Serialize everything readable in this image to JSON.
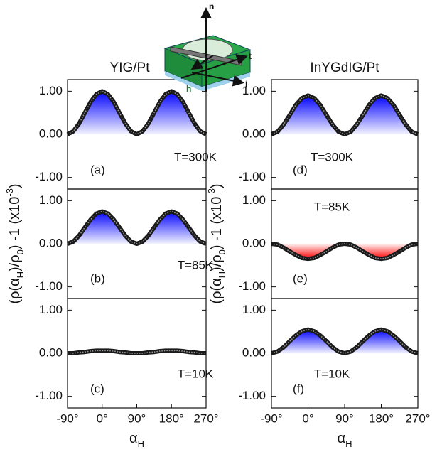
{
  "chart_data": [
    {
      "type": "area-line",
      "title": "YIG/Pt",
      "annotations": [
        "T=300K",
        "(a)"
      ],
      "fill_color": "#0000ff",
      "x": [
        -90,
        -75,
        -60,
        -45,
        -30,
        -15,
        0,
        15,
        30,
        45,
        60,
        75,
        90,
        105,
        120,
        135,
        150,
        165,
        180,
        195,
        210,
        225,
        240,
        255,
        270
      ],
      "values": [
        0,
        0.07,
        0.25,
        0.5,
        0.75,
        0.93,
        1,
        0.93,
        0.75,
        0.5,
        0.25,
        0.07,
        0,
        0.07,
        0.25,
        0.5,
        0.75,
        0.93,
        1,
        0.93,
        0.75,
        0.5,
        0.25,
        0.07,
        0
      ],
      "xlim": [
        -90,
        270
      ],
      "ylim": [
        -1.27,
        1.27
      ],
      "yticks": [
        {
          "value": 1,
          "label": "1.00"
        },
        {
          "value": 0,
          "label": "0.00"
        },
        {
          "value": -1,
          "label": "-1.00"
        }
      ]
    },
    {
      "type": "area-line",
      "annotations": [
        "T=85K",
        "(b)"
      ],
      "fill_color": "#0000ff",
      "ylabel": [
        {
          "text": "(ρ(α"
        },
        {
          "text": "H",
          "sub": true
        },
        {
          "text": ")/ρ"
        },
        {
          "text": "0",
          "sub": true
        },
        {
          "text": ") -1 (x10"
        },
        {
          "text": "-3",
          "sup": true
        },
        {
          "text": ")"
        }
      ],
      "x": [
        -90,
        -75,
        -60,
        -45,
        -30,
        -15,
        0,
        15,
        30,
        45,
        60,
        75,
        90,
        105,
        120,
        135,
        150,
        165,
        180,
        195,
        210,
        225,
        240,
        255,
        270
      ],
      "values": [
        0,
        0.05,
        0.19,
        0.38,
        0.56,
        0.7,
        0.75,
        0.7,
        0.56,
        0.38,
        0.19,
        0.05,
        0,
        0.05,
        0.19,
        0.38,
        0.56,
        0.7,
        0.75,
        0.7,
        0.56,
        0.38,
        0.19,
        0.05,
        0
      ],
      "xlim": [
        -90,
        270
      ],
      "ylim": [
        -1.27,
        1.27
      ],
      "yticks": [
        {
          "value": 1,
          "label": "1.00"
        },
        {
          "value": 0,
          "label": "0.00"
        },
        {
          "value": -1,
          "label": "-1.00"
        }
      ]
    },
    {
      "type": "area-line",
      "annotations": [
        "T=10K",
        "(c)"
      ],
      "fill_color": "#0000ff",
      "xlabel": [
        {
          "text": "α"
        },
        {
          "text": "H",
          "sub": true
        }
      ],
      "x": [
        -90,
        -75,
        -60,
        -45,
        -30,
        -15,
        0,
        15,
        30,
        45,
        60,
        75,
        90,
        105,
        120,
        135,
        150,
        165,
        180,
        195,
        210,
        225,
        240,
        255,
        270
      ],
      "values": [
        0,
        0,
        0.02,
        0.03,
        0.05,
        0.06,
        0.06,
        0.06,
        0.05,
        0.03,
        0.02,
        0,
        0,
        0,
        0.02,
        0.03,
        0.05,
        0.06,
        0.06,
        0.06,
        0.05,
        0.03,
        0.02,
        0,
        0
      ],
      "xlim": [
        -90,
        270
      ],
      "ylim": [
        -1.27,
        1.27
      ],
      "xticks": [
        {
          "value": -90,
          "label": "-90°"
        },
        {
          "value": 0,
          "label": "0°"
        },
        {
          "value": 90,
          "label": "90°"
        },
        {
          "value": 180,
          "label": "180°"
        },
        {
          "value": 270,
          "label": "270°"
        }
      ],
      "yticks": [
        {
          "value": 1,
          "label": "1.00"
        },
        {
          "value": 0,
          "label": "0.00"
        },
        {
          "value": -1,
          "label": "-1.00"
        }
      ]
    },
    {
      "type": "area-line",
      "title": "InYGdIG/Pt",
      "annotations": [
        "T=300K",
        "(d)"
      ],
      "fill_color": "#0000ff",
      "x": [
        -90,
        -75,
        -60,
        -45,
        -30,
        -15,
        0,
        15,
        30,
        45,
        60,
        75,
        90,
        105,
        120,
        135,
        150,
        165,
        180,
        195,
        210,
        225,
        240,
        255,
        270
      ],
      "values": [
        0,
        0.06,
        0.23,
        0.45,
        0.68,
        0.84,
        0.9,
        0.84,
        0.68,
        0.45,
        0.23,
        0.06,
        0,
        0.06,
        0.23,
        0.45,
        0.68,
        0.84,
        0.9,
        0.84,
        0.68,
        0.45,
        0.23,
        0.06,
        0
      ],
      "xlim": [
        -90,
        270
      ],
      "ylim": [
        -1.27,
        1.27
      ],
      "yticks": [
        {
          "value": 1,
          "label": "1.00"
        },
        {
          "value": 0,
          "label": "0.00"
        },
        {
          "value": -1,
          "label": "-1.00"
        }
      ]
    },
    {
      "type": "area-line",
      "annotations": [
        "T=85K",
        "(e)"
      ],
      "fill_color": "#ff0000",
      "ylabel": [
        {
          "text": "(ρ(α"
        },
        {
          "text": "H",
          "sub": true
        },
        {
          "text": ")/ρ"
        },
        {
          "text": "0",
          "sub": true
        },
        {
          "text": ") -1 (x10"
        },
        {
          "text": "-3",
          "sup": true
        },
        {
          "text": ")"
        }
      ],
      "x": [
        -90,
        -75,
        -60,
        -45,
        -30,
        -15,
        0,
        15,
        30,
        45,
        60,
        75,
        90,
        105,
        120,
        135,
        150,
        165,
        180,
        195,
        210,
        225,
        240,
        255,
        270
      ],
      "values": [
        0,
        -0.02,
        -0.09,
        -0.18,
        -0.26,
        -0.33,
        -0.35,
        -0.33,
        -0.26,
        -0.18,
        -0.09,
        -0.02,
        0,
        -0.02,
        -0.09,
        -0.18,
        -0.26,
        -0.33,
        -0.35,
        -0.33,
        -0.26,
        -0.18,
        -0.09,
        -0.02,
        0
      ],
      "xlim": [
        -90,
        270
      ],
      "ylim": [
        -1.27,
        1.27
      ],
      "yticks": [
        {
          "value": 1,
          "label": "1.00"
        },
        {
          "value": 0,
          "label": "0.00"
        },
        {
          "value": -1,
          "label": "-1.00"
        }
      ]
    },
    {
      "type": "area-line",
      "annotations": [
        "T=10K",
        "(f)"
      ],
      "fill_color": "#0000ff",
      "xlabel": [
        {
          "text": "α"
        },
        {
          "text": "H",
          "sub": true
        }
      ],
      "x": [
        -90,
        -75,
        -60,
        -45,
        -30,
        -15,
        0,
        15,
        30,
        45,
        60,
        75,
        90,
        105,
        120,
        135,
        150,
        165,
        180,
        195,
        210,
        225,
        240,
        255,
        270
      ],
      "values": [
        0,
        0.04,
        0.14,
        0.28,
        0.41,
        0.51,
        0.55,
        0.51,
        0.41,
        0.28,
        0.14,
        0.04,
        0,
        0.04,
        0.14,
        0.28,
        0.41,
        0.51,
        0.55,
        0.51,
        0.41,
        0.28,
        0.14,
        0.04,
        0
      ],
      "xlim": [
        -90,
        270
      ],
      "ylim": [
        -1.27,
        1.27
      ],
      "xticks": [
        {
          "value": -90,
          "label": "-90°"
        },
        {
          "value": 0,
          "label": "0°"
        },
        {
          "value": 90,
          "label": "90°"
        },
        {
          "value": 180,
          "label": "180°"
        },
        {
          "value": 270,
          "label": "270°"
        }
      ],
      "yticks": [
        {
          "value": 1,
          "label": "1.00"
        },
        {
          "value": 0,
          "label": "0.00"
        },
        {
          "value": -1,
          "label": "-1.00"
        }
      ]
    }
  ],
  "inset": {
    "labels": {
      "n": "n",
      "t": "t",
      "j": "j",
      "h": "h"
    }
  }
}
